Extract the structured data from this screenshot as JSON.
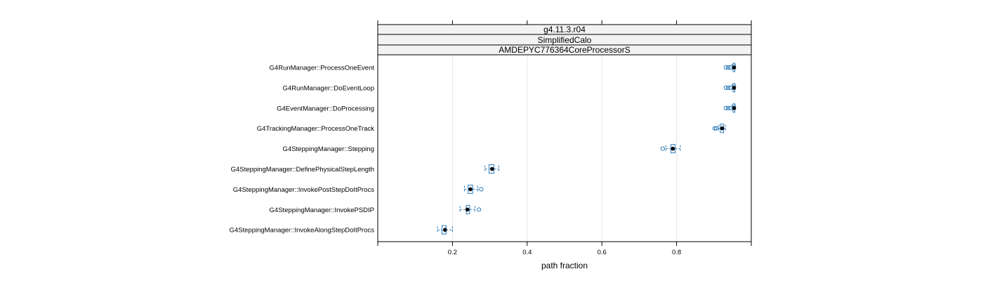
{
  "chart_data": {
    "type": "boxplot",
    "strips": [
      "g4.11.3.r04",
      "SimplifiedCalo",
      "AMDEPYC776364CoreProcessorS"
    ],
    "xlabel": "path fraction",
    "xlim": [
      0.0,
      1.0
    ],
    "xticks": [
      0.2,
      0.4,
      0.6,
      0.8
    ],
    "grid": true,
    "box_color": "#2b7bba",
    "median_color": "#000000",
    "grid_color": "#e6e6e6",
    "categories": [
      "G4RunManager::ProcessOneEvent",
      "G4RunManager::DoEventLoop",
      "G4EventManager::DoProcessing",
      "G4TrackingManager::ProcessOneTrack",
      "G4SteppingManager::Stepping",
      "G4SteppingManager::DefinePhysicalStepLength",
      "G4SteppingManager::InvokePostStepDoItProcs",
      "G4SteppingManager::InvokePSDIP",
      "G4SteppingManager::InvokeAlongStepDoItProcs"
    ],
    "boxes": [
      {
        "whisker_low": 0.949,
        "q1": 0.951,
        "median": 0.954,
        "q3": 0.956,
        "whisker_high": 0.957,
        "outliers": [
          0.932,
          0.938,
          0.944
        ]
      },
      {
        "whisker_low": 0.949,
        "q1": 0.951,
        "median": 0.954,
        "q3": 0.956,
        "whisker_high": 0.957,
        "outliers": [
          0.932,
          0.938,
          0.944
        ]
      },
      {
        "whisker_low": 0.949,
        "q1": 0.951,
        "median": 0.954,
        "q3": 0.956,
        "whisker_high": 0.957,
        "outliers": [
          0.932,
          0.938,
          0.944
        ]
      },
      {
        "whisker_low": 0.912,
        "q1": 0.917,
        "median": 0.922,
        "q3": 0.926,
        "whisker_high": 0.931,
        "outliers": [
          0.902,
          0.906
        ]
      },
      {
        "whisker_low": 0.771,
        "q1": 0.785,
        "median": 0.79,
        "q3": 0.796,
        "whisker_high": 0.81,
        "outliers": [
          0.763
        ]
      },
      {
        "whisker_low": 0.287,
        "q1": 0.298,
        "median": 0.306,
        "q3": 0.311,
        "whisker_high": 0.324,
        "outliers": []
      },
      {
        "whisker_low": 0.232,
        "q1": 0.242,
        "median": 0.248,
        "q3": 0.254,
        "whisker_high": 0.268,
        "outliers": [
          0.277
        ]
      },
      {
        "whisker_low": 0.22,
        "q1": 0.237,
        "median": 0.24,
        "q3": 0.246,
        "whisker_high": 0.26,
        "outliers": [
          0.271
        ]
      },
      {
        "whisker_low": 0.16,
        "q1": 0.172,
        "median": 0.18,
        "q3": 0.183,
        "whisker_high": 0.2,
        "outliers": []
      }
    ]
  }
}
